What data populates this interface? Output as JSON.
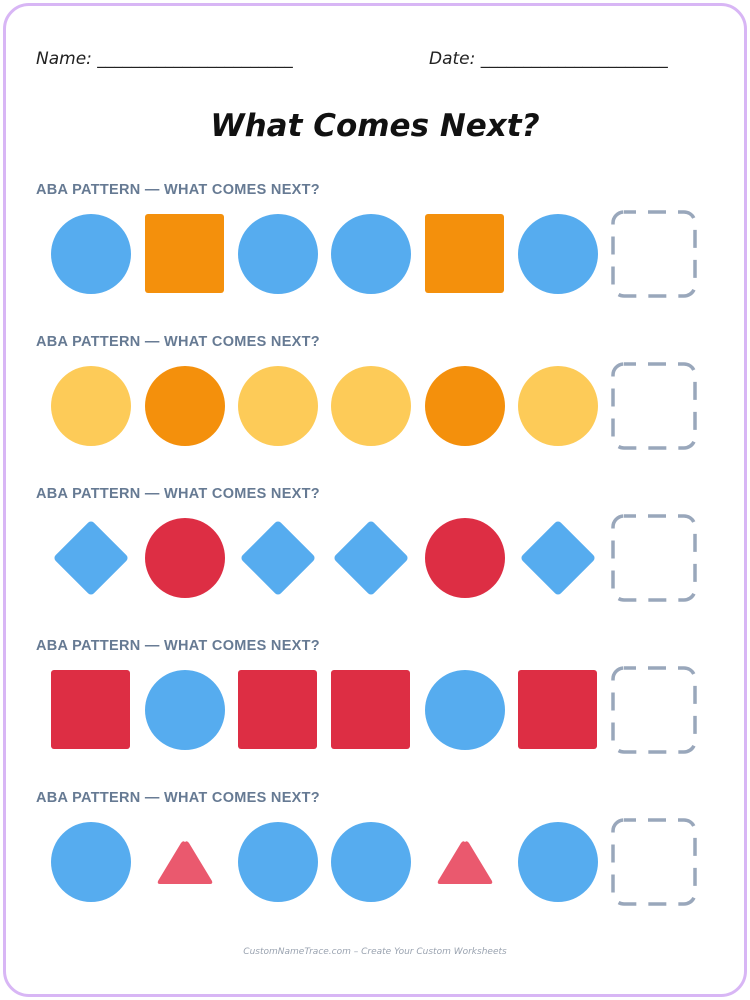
{
  "header": {
    "name_label": "Name: _______________________",
    "date_label": "Date: ______________________"
  },
  "title": "What Comes Next?",
  "colors": {
    "blue": "#56acef",
    "orange": "#f4900c",
    "yellow": "#fdcb58",
    "red": "#dd2e44",
    "pink": "#ea596e",
    "blank_border": "#99a7bb",
    "label": "#667a93",
    "frame": "#d8b6f5"
  },
  "rows": [
    {
      "label": "ABA PATTERN — WHAT COMES NEXT?",
      "shapes": [
        {
          "shape": "circle",
          "color": "blue"
        },
        {
          "shape": "square",
          "color": "orange"
        },
        {
          "shape": "circle",
          "color": "blue"
        },
        {
          "shape": "circle",
          "color": "blue"
        },
        {
          "shape": "square",
          "color": "orange"
        },
        {
          "shape": "circle",
          "color": "blue"
        },
        {
          "shape": "blank"
        }
      ]
    },
    {
      "label": "ABA PATTERN — WHAT COMES NEXT?",
      "shapes": [
        {
          "shape": "circle",
          "color": "yellow"
        },
        {
          "shape": "circle",
          "color": "orange"
        },
        {
          "shape": "circle",
          "color": "yellow"
        },
        {
          "shape": "circle",
          "color": "yellow"
        },
        {
          "shape": "circle",
          "color": "orange"
        },
        {
          "shape": "circle",
          "color": "yellow"
        },
        {
          "shape": "blank"
        }
      ]
    },
    {
      "label": "ABA PATTERN — WHAT COMES NEXT?",
      "shapes": [
        {
          "shape": "diamond",
          "color": "blue"
        },
        {
          "shape": "circle",
          "color": "red"
        },
        {
          "shape": "diamond",
          "color": "blue"
        },
        {
          "shape": "diamond",
          "color": "blue"
        },
        {
          "shape": "circle",
          "color": "red"
        },
        {
          "shape": "diamond",
          "color": "blue"
        },
        {
          "shape": "blank"
        }
      ]
    },
    {
      "label": "ABA PATTERN — WHAT COMES NEXT?",
      "shapes": [
        {
          "shape": "square",
          "color": "red"
        },
        {
          "shape": "circle",
          "color": "blue"
        },
        {
          "shape": "square",
          "color": "red"
        },
        {
          "shape": "square",
          "color": "red"
        },
        {
          "shape": "circle",
          "color": "blue"
        },
        {
          "shape": "square",
          "color": "red"
        },
        {
          "shape": "blank"
        }
      ]
    },
    {
      "label": "ABA PATTERN — WHAT COMES NEXT?",
      "shapes": [
        {
          "shape": "circle",
          "color": "blue"
        },
        {
          "shape": "triangle",
          "color": "pink"
        },
        {
          "shape": "circle",
          "color": "blue"
        },
        {
          "shape": "circle",
          "color": "blue"
        },
        {
          "shape": "triangle",
          "color": "pink"
        },
        {
          "shape": "circle",
          "color": "blue"
        },
        {
          "shape": "blank"
        }
      ]
    }
  ],
  "footer": "CustomNameTrace.com – Create Your Custom Worksheets"
}
